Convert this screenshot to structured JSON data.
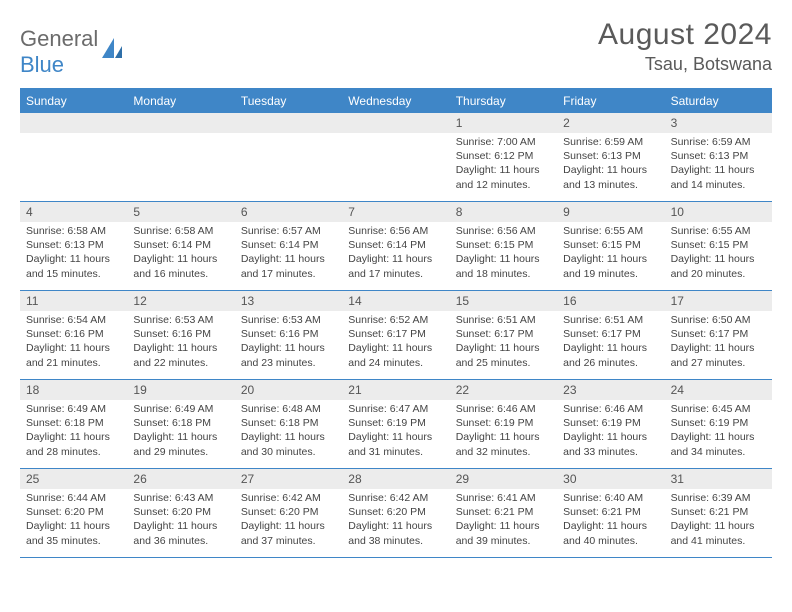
{
  "logo": {
    "word1": "General",
    "word2": "Blue"
  },
  "title": "August 2024",
  "location": "Tsau, Botswana",
  "colors": {
    "accent": "#3f86c7",
    "header_text": "#ffffff",
    "daynum_bg": "#ececec",
    "body_text": "#444444",
    "title_text": "#5a5a5a",
    "page_bg": "#ffffff"
  },
  "day_headers": [
    "Sunday",
    "Monday",
    "Tuesday",
    "Wednesday",
    "Thursday",
    "Friday",
    "Saturday"
  ],
  "weeks": [
    [
      {
        "n": "",
        "sr": "",
        "ss": "",
        "dl": ""
      },
      {
        "n": "",
        "sr": "",
        "ss": "",
        "dl": ""
      },
      {
        "n": "",
        "sr": "",
        "ss": "",
        "dl": ""
      },
      {
        "n": "",
        "sr": "",
        "ss": "",
        "dl": ""
      },
      {
        "n": "1",
        "sr": "7:00 AM",
        "ss": "6:12 PM",
        "dl": "11 hours and 12 minutes."
      },
      {
        "n": "2",
        "sr": "6:59 AM",
        "ss": "6:13 PM",
        "dl": "11 hours and 13 minutes."
      },
      {
        "n": "3",
        "sr": "6:59 AM",
        "ss": "6:13 PM",
        "dl": "11 hours and 14 minutes."
      }
    ],
    [
      {
        "n": "4",
        "sr": "6:58 AM",
        "ss": "6:13 PM",
        "dl": "11 hours and 15 minutes."
      },
      {
        "n": "5",
        "sr": "6:58 AM",
        "ss": "6:14 PM",
        "dl": "11 hours and 16 minutes."
      },
      {
        "n": "6",
        "sr": "6:57 AM",
        "ss": "6:14 PM",
        "dl": "11 hours and 17 minutes."
      },
      {
        "n": "7",
        "sr": "6:56 AM",
        "ss": "6:14 PM",
        "dl": "11 hours and 17 minutes."
      },
      {
        "n": "8",
        "sr": "6:56 AM",
        "ss": "6:15 PM",
        "dl": "11 hours and 18 minutes."
      },
      {
        "n": "9",
        "sr": "6:55 AM",
        "ss": "6:15 PM",
        "dl": "11 hours and 19 minutes."
      },
      {
        "n": "10",
        "sr": "6:55 AM",
        "ss": "6:15 PM",
        "dl": "11 hours and 20 minutes."
      }
    ],
    [
      {
        "n": "11",
        "sr": "6:54 AM",
        "ss": "6:16 PM",
        "dl": "11 hours and 21 minutes."
      },
      {
        "n": "12",
        "sr": "6:53 AM",
        "ss": "6:16 PM",
        "dl": "11 hours and 22 minutes."
      },
      {
        "n": "13",
        "sr": "6:53 AM",
        "ss": "6:16 PM",
        "dl": "11 hours and 23 minutes."
      },
      {
        "n": "14",
        "sr": "6:52 AM",
        "ss": "6:17 PM",
        "dl": "11 hours and 24 minutes."
      },
      {
        "n": "15",
        "sr": "6:51 AM",
        "ss": "6:17 PM",
        "dl": "11 hours and 25 minutes."
      },
      {
        "n": "16",
        "sr": "6:51 AM",
        "ss": "6:17 PM",
        "dl": "11 hours and 26 minutes."
      },
      {
        "n": "17",
        "sr": "6:50 AM",
        "ss": "6:17 PM",
        "dl": "11 hours and 27 minutes."
      }
    ],
    [
      {
        "n": "18",
        "sr": "6:49 AM",
        "ss": "6:18 PM",
        "dl": "11 hours and 28 minutes."
      },
      {
        "n": "19",
        "sr": "6:49 AM",
        "ss": "6:18 PM",
        "dl": "11 hours and 29 minutes."
      },
      {
        "n": "20",
        "sr": "6:48 AM",
        "ss": "6:18 PM",
        "dl": "11 hours and 30 minutes."
      },
      {
        "n": "21",
        "sr": "6:47 AM",
        "ss": "6:19 PM",
        "dl": "11 hours and 31 minutes."
      },
      {
        "n": "22",
        "sr": "6:46 AM",
        "ss": "6:19 PM",
        "dl": "11 hours and 32 minutes."
      },
      {
        "n": "23",
        "sr": "6:46 AM",
        "ss": "6:19 PM",
        "dl": "11 hours and 33 minutes."
      },
      {
        "n": "24",
        "sr": "6:45 AM",
        "ss": "6:19 PM",
        "dl": "11 hours and 34 minutes."
      }
    ],
    [
      {
        "n": "25",
        "sr": "6:44 AM",
        "ss": "6:20 PM",
        "dl": "11 hours and 35 minutes."
      },
      {
        "n": "26",
        "sr": "6:43 AM",
        "ss": "6:20 PM",
        "dl": "11 hours and 36 minutes."
      },
      {
        "n": "27",
        "sr": "6:42 AM",
        "ss": "6:20 PM",
        "dl": "11 hours and 37 minutes."
      },
      {
        "n": "28",
        "sr": "6:42 AM",
        "ss": "6:20 PM",
        "dl": "11 hours and 38 minutes."
      },
      {
        "n": "29",
        "sr": "6:41 AM",
        "ss": "6:21 PM",
        "dl": "11 hours and 39 minutes."
      },
      {
        "n": "30",
        "sr": "6:40 AM",
        "ss": "6:21 PM",
        "dl": "11 hours and 40 minutes."
      },
      {
        "n": "31",
        "sr": "6:39 AM",
        "ss": "6:21 PM",
        "dl": "11 hours and 41 minutes."
      }
    ]
  ],
  "labels": {
    "sunrise": "Sunrise: ",
    "sunset": "Sunset: ",
    "daylight": "Daylight: "
  }
}
